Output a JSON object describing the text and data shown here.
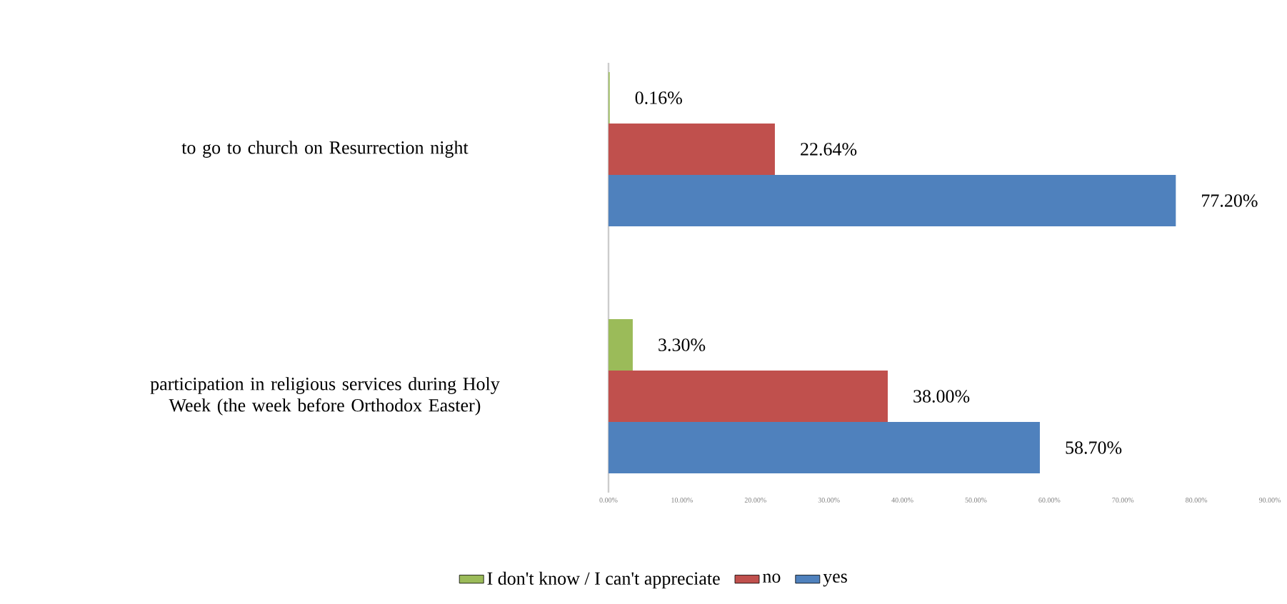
{
  "chart_data": {
    "type": "bar",
    "orientation": "horizontal",
    "categories": [
      "to go to church on Resurrection night",
      "participation in religious services during Holy Week (the week before Orthodox Easter)"
    ],
    "series": [
      {
        "name": "I don't know / I can't appreciate",
        "color": "#9bbb59",
        "values": [
          0.16,
          3.3
        ],
        "value_labels": [
          "0.16%",
          "3.30%"
        ]
      },
      {
        "name": "no",
        "color": "#c0504d",
        "values": [
          22.64,
          38.0
        ],
        "value_labels": [
          "22.64%",
          "38.00%"
        ]
      },
      {
        "name": "yes",
        "color": "#4f81bd",
        "values": [
          77.2,
          58.7
        ],
        "value_labels": [
          "77.20%",
          "58.70%"
        ]
      }
    ],
    "xlim": [
      0,
      90
    ],
    "xticks": [
      {
        "value": 0,
        "label": "0.00%"
      },
      {
        "value": 10,
        "label": "10.00%"
      },
      {
        "value": 20,
        "label": "20.00%"
      },
      {
        "value": 30,
        "label": "30.00%"
      },
      {
        "value": 40,
        "label": "40.00%"
      },
      {
        "value": 50,
        "label": "50.00%"
      },
      {
        "value": 60,
        "label": "60.00%"
      },
      {
        "value": 70,
        "label": "70.00%"
      },
      {
        "value": 80,
        "label": "80.00%"
      },
      {
        "value": 90,
        "label": "90.00%"
      }
    ],
    "grid": false,
    "legend": "bottom"
  }
}
